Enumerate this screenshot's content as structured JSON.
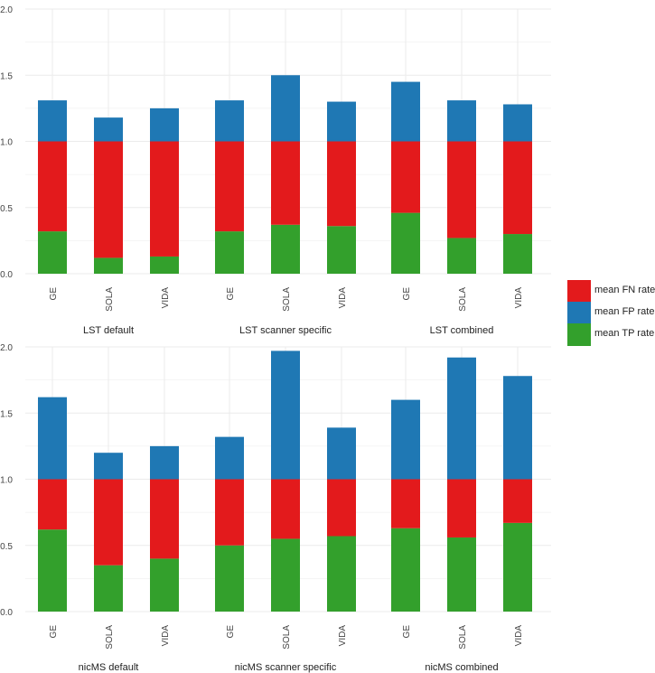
{
  "colors": {
    "fn": "#e31a1c",
    "fp": "#1f78b4",
    "tp": "#33a02c",
    "grid": "#ebebeb",
    "text": "#444444"
  },
  "legend": {
    "items": [
      {
        "key": "fn",
        "label": "mean FN rate",
        "color": "#e31a1c"
      },
      {
        "key": "fp",
        "label": "mean FP rate",
        "color": "#1f78b4"
      },
      {
        "key": "tp",
        "label": "mean TP rate",
        "color": "#33a02c"
      }
    ]
  },
  "chart_data": [
    {
      "type": "bar",
      "stacked": true,
      "ylim": [
        0,
        2
      ],
      "yticks": [
        0.0,
        0.5,
        1.0,
        1.5,
        2.0
      ],
      "ytick_labels": [
        "0.0",
        "0.5",
        "1.0",
        "1.5",
        "2.0"
      ],
      "groups": [
        {
          "label": "LST default",
          "categories": [
            "GE",
            "SOLA",
            "VIDA"
          ],
          "tp": [
            0.32,
            0.12,
            0.13
          ],
          "fn": [
            0.68,
            0.88,
            0.87
          ],
          "fp": [
            0.31,
            0.18,
            0.25
          ]
        },
        {
          "label": "LST scanner specific",
          "categories": [
            "GE",
            "SOLA",
            "VIDA"
          ],
          "tp": [
            0.32,
            0.37,
            0.36
          ],
          "fn": [
            0.68,
            0.63,
            0.64
          ],
          "fp": [
            0.31,
            0.5,
            0.3
          ]
        },
        {
          "label": "LST combined",
          "categories": [
            "GE",
            "SOLA",
            "VIDA"
          ],
          "tp": [
            0.46,
            0.27,
            0.3
          ],
          "fn": [
            0.54,
            0.73,
            0.7
          ],
          "fp": [
            0.45,
            0.31,
            0.28
          ]
        }
      ]
    },
    {
      "type": "bar",
      "stacked": true,
      "ylim": [
        0,
        2
      ],
      "yticks": [
        0.0,
        0.5,
        1.0,
        1.5,
        2.0
      ],
      "ytick_labels": [
        "0.0",
        "0.5",
        "1.0",
        "1.5",
        "2.0"
      ],
      "groups": [
        {
          "label": "nicMS default",
          "categories": [
            "GE",
            "SOLA",
            "VIDA"
          ],
          "tp": [
            0.62,
            0.35,
            0.4
          ],
          "fn": [
            0.38,
            0.65,
            0.6
          ],
          "fp": [
            0.62,
            0.2,
            0.25
          ]
        },
        {
          "label": "nicMS scanner specific",
          "categories": [
            "GE",
            "SOLA",
            "VIDA"
          ],
          "tp": [
            0.5,
            0.55,
            0.57
          ],
          "fn": [
            0.5,
            0.45,
            0.43
          ],
          "fp": [
            0.32,
            0.97,
            0.39
          ]
        },
        {
          "label": "nicMS combined",
          "categories": [
            "GE",
            "SOLA",
            "VIDA"
          ],
          "tp": [
            0.63,
            0.56,
            0.67
          ],
          "fn": [
            0.37,
            0.44,
            0.33
          ],
          "fp": [
            0.6,
            0.92,
            0.78
          ]
        }
      ]
    }
  ]
}
